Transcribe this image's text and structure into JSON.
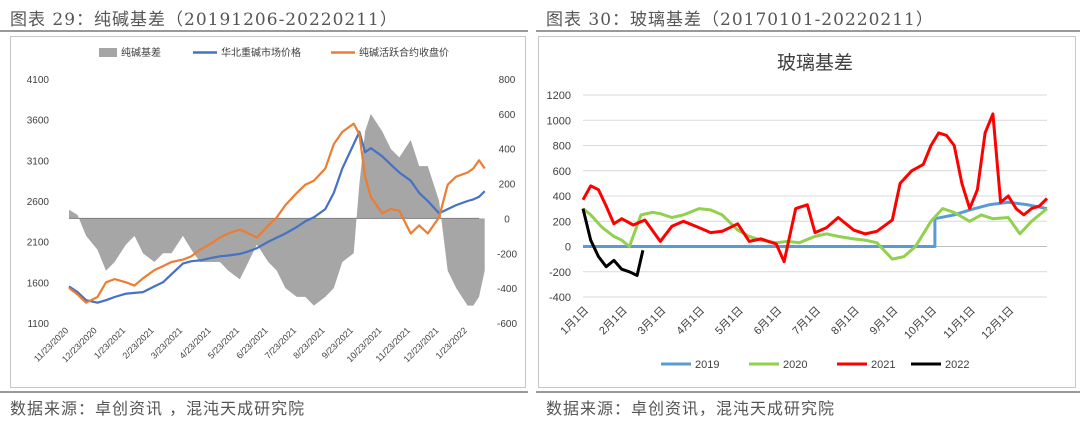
{
  "figures": [
    {
      "header": "图表 29：纯碱基差（20191206-20220211）",
      "source": "数据来源：卓创资讯 ，混沌天成研究院"
    },
    {
      "header": "图表 30：玻璃基差（20170101-20220211）",
      "source": "数据来源：卓创资讯，混沌天成研究院"
    }
  ],
  "chart_data": [
    {
      "type": "line",
      "title": "",
      "legend": [
        "纯碱基差",
        "华北重碱市场价格",
        "纯碱活跃合约收盘价"
      ],
      "legend_placement": "top",
      "colors": {
        "basis": "#a6a6a6",
        "spot": "#4472c4",
        "futures": "#ed7d31"
      },
      "x_ticks": [
        "11/23/2020",
        "12/23/2020",
        "1/23/2021",
        "2/23/2021",
        "3/23/2021",
        "4/23/2021",
        "5/23/2021",
        "6/23/2021",
        "7/23/2021",
        "8/23/2021",
        "9/23/2021",
        "10/23/2021",
        "11/23/2021",
        "12/23/2021",
        "1/23/2022"
      ],
      "ylim_left": [
        1100,
        4100
      ],
      "yticks_left": [
        1100,
        1600,
        2100,
        2600,
        3100,
        3600,
        4100
      ],
      "ylim_right": [
        -600,
        800
      ],
      "yticks_right": [
        -600,
        -400,
        -200,
        0,
        200,
        400,
        600,
        800
      ],
      "grid": false,
      "x": [
        0,
        0.3,
        0.6,
        1,
        1.3,
        1.6,
        2,
        2.3,
        2.6,
        3,
        3.3,
        3.6,
        4,
        4.3,
        4.6,
        5,
        5.3,
        5.6,
        6,
        6.3,
        6.6,
        7,
        7.3,
        7.6,
        8,
        8.3,
        8.6,
        9,
        9.3,
        9.6,
        10,
        10.2,
        10.4,
        10.6,
        10.8,
        11,
        11.3,
        11.6,
        12,
        12.3,
        12.6,
        13,
        13.3,
        13.6,
        14,
        14.2,
        14.4,
        14.6
      ],
      "series": [
        {
          "name": "华北重碱市场价格",
          "axis": "left",
          "values": [
            1550,
            1480,
            1380,
            1350,
            1380,
            1420,
            1460,
            1470,
            1480,
            1550,
            1600,
            1700,
            1830,
            1860,
            1870,
            1900,
            1920,
            1930,
            1950,
            1980,
            2020,
            2100,
            2150,
            2200,
            2280,
            2350,
            2400,
            2500,
            2700,
            3000,
            3300,
            3450,
            3200,
            3250,
            3200,
            3150,
            3050,
            2950,
            2850,
            2700,
            2600,
            2450,
            2500,
            2550,
            2600,
            2620,
            2650,
            2720
          ]
        },
        {
          "name": "纯碱活跃合约收盘价",
          "axis": "left",
          "values": [
            1530,
            1450,
            1350,
            1420,
            1600,
            1640,
            1600,
            1560,
            1650,
            1750,
            1800,
            1850,
            1880,
            1920,
            2000,
            2080,
            2150,
            2200,
            2250,
            2200,
            2150,
            2300,
            2400,
            2550,
            2700,
            2800,
            2850,
            3000,
            3300,
            3450,
            3550,
            3420,
            2900,
            2650,
            2550,
            2450,
            2500,
            2480,
            2200,
            2300,
            2200,
            2400,
            2800,
            2900,
            2950,
            3000,
            3100,
            3000
          ]
        },
        {
          "name": "纯碱基差",
          "axis": "right",
          "values": [
            50,
            20,
            -100,
            -180,
            -300,
            -250,
            -150,
            -100,
            -200,
            -250,
            -200,
            -200,
            -100,
            -180,
            -250,
            -250,
            -250,
            -300,
            -350,
            -250,
            -150,
            -250,
            -300,
            -400,
            -450,
            -450,
            -500,
            -450,
            -400,
            -250,
            -200,
            200,
            500,
            600,
            550,
            500,
            400,
            350,
            450,
            300,
            300,
            100,
            -300,
            -400,
            -500,
            -500,
            -450,
            -300
          ]
        }
      ]
    },
    {
      "type": "line",
      "title": "玻璃基差",
      "legend": [
        "2019",
        "2020",
        "2021",
        "2022"
      ],
      "legend_placement": "bottom",
      "colors": {
        "2019": "#5b9bd5",
        "2020": "#92d050",
        "2021": "#ff0000",
        "2022": "#000000"
      },
      "x_ticks": [
        "1月1日",
        "2月1日",
        "3月1日",
        "4月1日",
        "5月1日",
        "6月1日",
        "7月1日",
        "8月1日",
        "9月1日",
        "10月1日",
        "11月1日",
        "12月1日"
      ],
      "ylim": [
        -400,
        1200
      ],
      "yticks": [
        -400,
        -200,
        0,
        200,
        400,
        600,
        800,
        1000,
        1200
      ],
      "grid": true,
      "series": [
        {
          "name": "2019",
          "x": [
            0,
            9.1,
            9.1,
            9.6,
            10,
            10.5,
            11,
            11.5,
            12
          ],
          "values": [
            0,
            0,
            220,
            250,
            290,
            330,
            350,
            330,
            300
          ]
        },
        {
          "name": "2020",
          "x": [
            0,
            0.2,
            0.5,
            0.8,
            1,
            1.2,
            1.5,
            1.8,
            2,
            2.3,
            2.6,
            3,
            3.3,
            3.6,
            4,
            4.3,
            4.6,
            5,
            5.3,
            5.6,
            6,
            6.3,
            6.6,
            7,
            7.3,
            7.6,
            8,
            8.3,
            8.6,
            9,
            9.3,
            9.6,
            10,
            10.3,
            10.6,
            11,
            11.3,
            11.6,
            12
          ],
          "values": [
            300,
            250,
            150,
            80,
            50,
            0,
            250,
            270,
            260,
            230,
            250,
            300,
            290,
            250,
            130,
            80,
            50,
            30,
            40,
            30,
            80,
            100,
            80,
            60,
            50,
            30,
            -100,
            -80,
            0,
            200,
            300,
            270,
            200,
            250,
            220,
            230,
            100,
            200,
            300
          ]
        },
        {
          "name": "2021",
          "x": [
            0,
            0.2,
            0.4,
            0.6,
            0.8,
            1,
            1.3,
            1.6,
            2,
            2.3,
            2.6,
            3,
            3.3,
            3.6,
            4,
            4.3,
            4.6,
            5,
            5.2,
            5.5,
            5.8,
            6,
            6.3,
            6.6,
            7,
            7.3,
            7.6,
            8,
            8.2,
            8.5,
            8.8,
            9,
            9.2,
            9.4,
            9.6,
            9.8,
            10,
            10.2,
            10.4,
            10.6,
            10.8,
            11,
            11.2,
            11.4,
            11.6,
            11.8,
            12
          ],
          "values": [
            370,
            480,
            450,
            320,
            180,
            220,
            170,
            210,
            40,
            160,
            200,
            150,
            110,
            120,
            180,
            40,
            60,
            20,
            -120,
            300,
            330,
            110,
            150,
            230,
            130,
            100,
            120,
            210,
            500,
            600,
            650,
            800,
            900,
            880,
            800,
            500,
            300,
            450,
            900,
            1050,
            350,
            400,
            300,
            250,
            300,
            320,
            380
          ]
        },
        {
          "name": "2022",
          "x": [
            0,
            0.2,
            0.4,
            0.6,
            0.8,
            1,
            1.2,
            1.4,
            1.55
          ],
          "values": [
            300,
            50,
            -80,
            -160,
            -110,
            -180,
            -200,
            -230,
            -30
          ]
        }
      ]
    }
  ]
}
